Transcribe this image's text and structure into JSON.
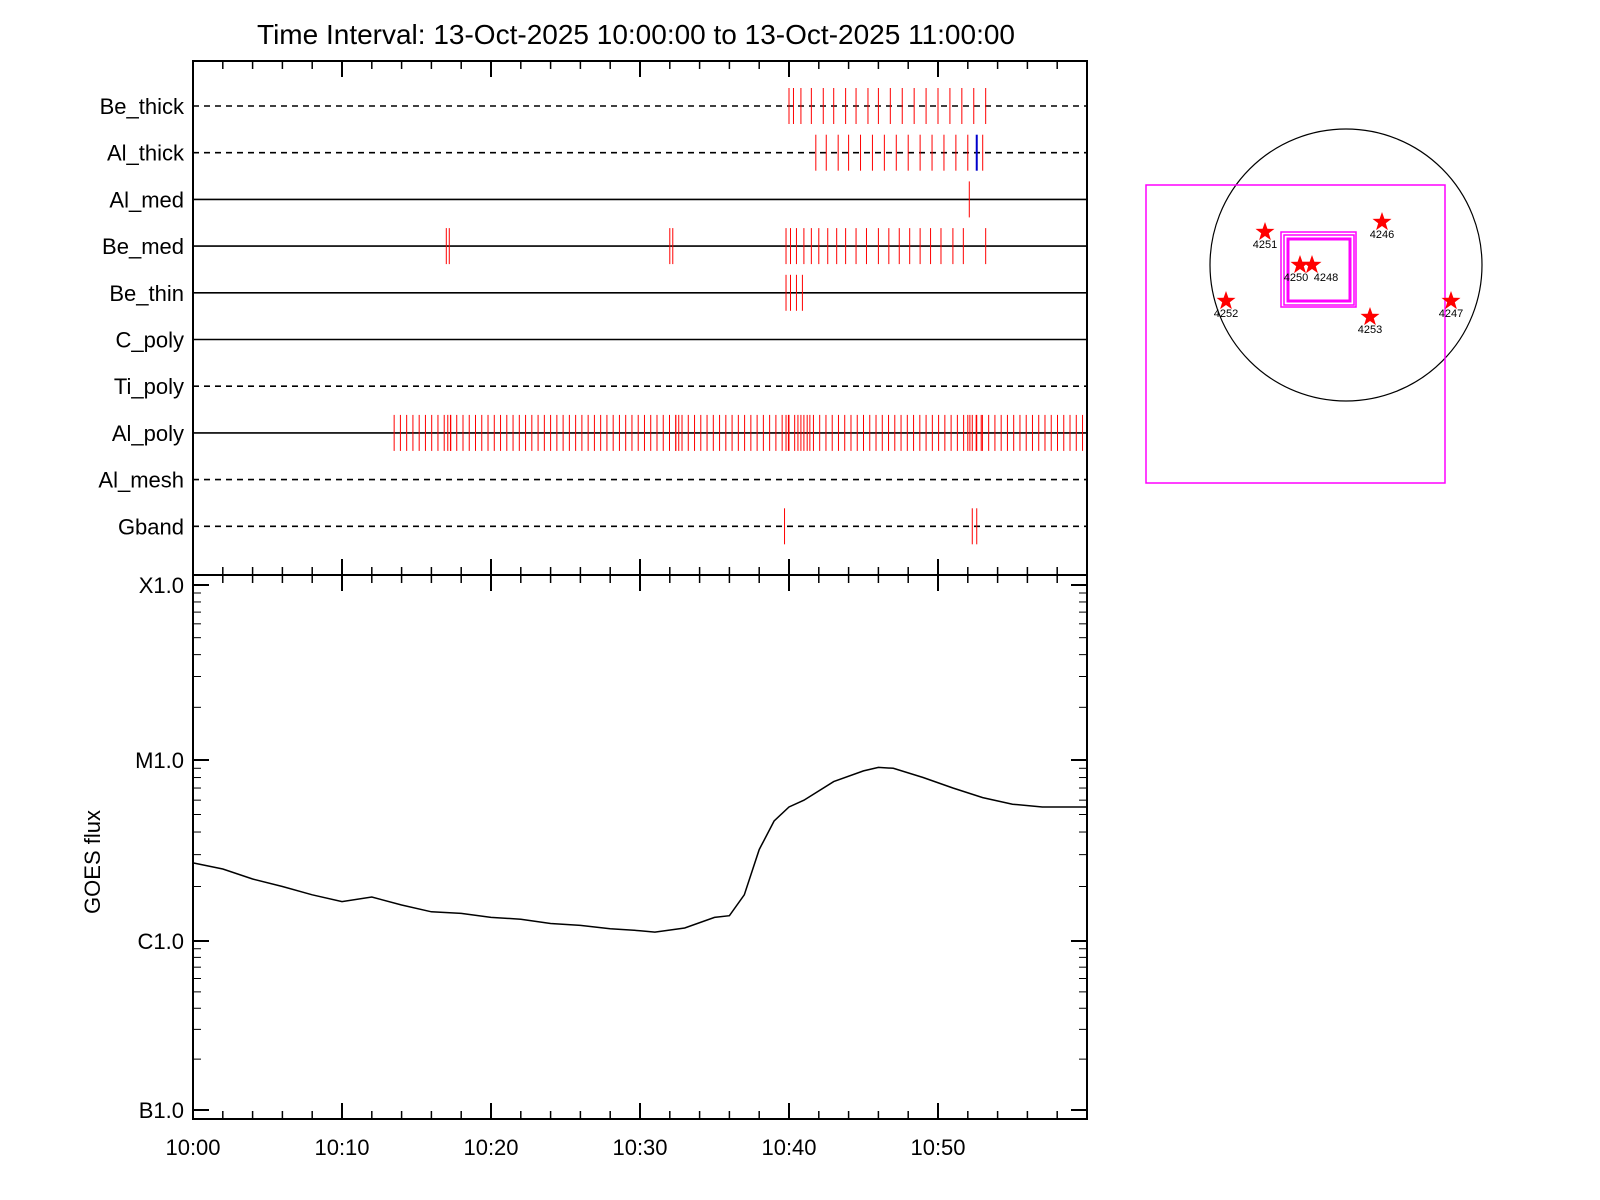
{
  "chart_data": {
    "type": "line",
    "title": "Time Interval: 13-Oct-2025 10:00:00 to 13-Oct-2025 11:00:00",
    "x_tick_labels": [
      "10:00",
      "10:10",
      "10:20",
      "10:30",
      "10:40",
      "10:50"
    ],
    "xlim": [
      "10:00",
      "11:00"
    ],
    "ylabel": "GOES flux",
    "y_scale": "log",
    "y_tick_labels": [
      "X1.0",
      "M1.0",
      "C1.0",
      "B1.0"
    ],
    "ylim": [
      1e-07,
      0.0001
    ],
    "goes_flux": {
      "t_minutes": [
        0,
        2,
        4,
        6,
        8,
        10,
        12,
        14,
        16,
        18,
        20,
        22,
        24,
        26,
        28,
        30,
        31,
        33,
        35,
        36,
        37,
        38,
        39,
        40,
        41,
        43,
        45,
        46,
        47,
        49,
        51,
        53,
        55,
        57,
        60
      ],
      "flux": [
        2.7e-06,
        2.5e-06,
        2.2e-06,
        2e-06,
        1.8e-06,
        1.65e-06,
        1.75e-06,
        1.58e-06,
        1.45e-06,
        1.42e-06,
        1.35e-06,
        1.32e-06,
        1.25e-06,
        1.22e-06,
        1.17e-06,
        1.14e-06,
        1.12e-06,
        1.18e-06,
        1.35e-06,
        1.38e-06,
        1.8e-06,
        3.2e-06,
        4.6e-06,
        5.5e-06,
        6e-06,
        7.6e-06,
        8.7e-06,
        9.1e-06,
        9e-06,
        8e-06,
        7e-06,
        6.2e-06,
        5.7e-06,
        5.5e-06,
        5.5e-06
      ]
    },
    "attenuator_channels": [
      {
        "name": "Be_thick",
        "style": "dashed",
        "events": [
          40.0,
          40.3,
          40.8,
          41.5,
          42.3,
          43.0,
          43.8,
          44.5,
          45.3,
          46.0,
          46.8,
          47.6,
          48.4,
          49.2,
          50.0,
          50.8,
          51.6,
          52.4,
          53.2
        ],
        "blue_events": []
      },
      {
        "name": "Al_thick",
        "style": "dashed",
        "events": [
          41.8,
          42.5,
          43.3,
          44.0,
          44.8,
          45.6,
          46.4,
          47.2,
          48.0,
          48.8,
          49.6,
          50.4,
          51.2,
          52.0,
          53.0
        ],
        "blue_events": [
          52.6
        ]
      },
      {
        "name": "Al_med",
        "style": "solid",
        "events": [
          52.1
        ],
        "blue_events": []
      },
      {
        "name": "Be_med",
        "style": "solid",
        "events": [
          17.0,
          17.2,
          32.0,
          32.2,
          39.8,
          40.1,
          40.5,
          41.0,
          41.5,
          42.0,
          42.6,
          43.2,
          43.8,
          44.5,
          45.2,
          46.0,
          46.7,
          47.4,
          48.1,
          48.8,
          49.5,
          50.2,
          51.0,
          51.7,
          53.2
        ],
        "blue_events": []
      },
      {
        "name": "Be_thin",
        "style": "solid",
        "events": [
          39.8,
          40.1,
          40.5,
          40.9
        ],
        "blue_events": []
      },
      {
        "name": "C_poly",
        "style": "solid",
        "events": [],
        "blue_events": []
      },
      {
        "name": "Ti_poly",
        "style": "dashed",
        "events": [],
        "blue_events": []
      },
      {
        "name": "Al_poly",
        "style": "solid",
        "events": "Al_poly_dense",
        "blue_events": []
      },
      {
        "name": "Al_mesh",
        "style": "dashed",
        "events": [],
        "blue_events": []
      },
      {
        "name": "Gband",
        "style": "dashed",
        "events": [
          39.7,
          52.3,
          52.6
        ],
        "blue_events": []
      }
    ],
    "Al_poly_dense": {
      "start": 13.5,
      "end": 59.8,
      "step": 0.42,
      "extra": [
        17.1,
        17.3,
        32.4,
        32.6,
        39.8,
        40.0,
        40.6,
        41.0,
        41.4,
        52.0,
        52.3,
        52.6,
        52.9
      ]
    }
  },
  "sun_map": {
    "regions": [
      {
        "label": "4251"
      },
      {
        "label": "4246"
      },
      {
        "label": "4250"
      },
      {
        "label": "4248"
      },
      {
        "label": "4252"
      },
      {
        "label": "4253"
      },
      {
        "label": "4247"
      }
    ],
    "colors": {
      "star": "#ff0000",
      "fov_box": "#ff00ff",
      "limb": "#000000"
    }
  },
  "colors": {
    "event": "#ff0000",
    "blue_event": "#0000cc",
    "axis": "#000000"
  }
}
